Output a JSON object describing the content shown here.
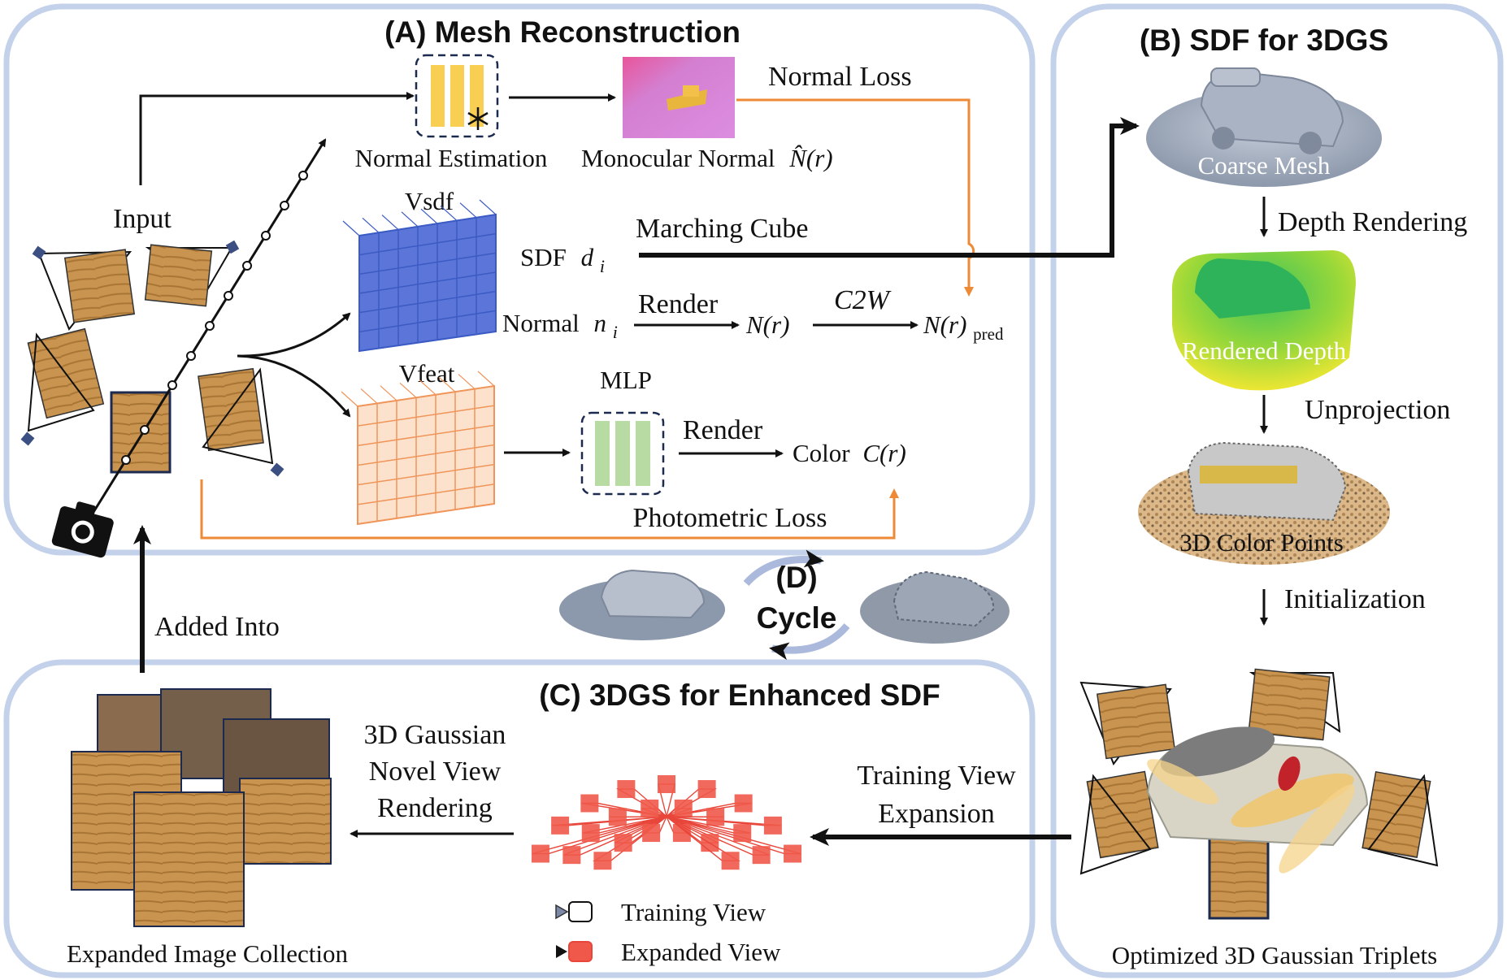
{
  "panels": {
    "a_title": "(A) Mesh Reconstruction",
    "b_title": "(B) SDF for 3DGS",
    "c_title": "(C) 3DGS for Enhanced SDF",
    "d_prefix": "(D)",
    "d_word": "Cycle"
  },
  "mesh": {
    "input": "Input",
    "normal_estimation": "Normal Estimation",
    "monocular_normal": "Monocular Normal",
    "monocular_normal_symbol": "N̂(r)",
    "normal_loss": "Normal Loss",
    "vsdf": "Vsdf",
    "vfeat": "Vfeat",
    "sdf": "SDF",
    "sdf_symbol": "d",
    "sdf_sub": "i",
    "marching_cube": "Marching Cube",
    "normal": "Normal",
    "normal_symbol": "n",
    "normal_sub": "i",
    "render_1": "Render",
    "n_r": "N(r)",
    "c2w": "C2W",
    "n_r_pred": "N(r)",
    "pred_sub": "pred",
    "mlp": "MLP",
    "render_2": "Render",
    "color": "Color",
    "color_symbol": "C(r)",
    "photometric_loss": "Photometric Loss"
  },
  "sdf3dgs": {
    "coarse_mesh": "Coarse Mesh",
    "depth_rendering": "Depth Rendering",
    "rendered_depth": "Rendered Depth",
    "unprojection": "Unprojection",
    "color_points": "3D Color Points",
    "initialization": "Initialization",
    "optimized": "Optimized 3D Gaussian Triplets"
  },
  "enhanced": {
    "added_into": "Added Into",
    "novel_view_1": "3D Gaussian",
    "novel_view_2": "Novel View",
    "novel_view_3": "Rendering",
    "expansion_1": "Training View",
    "expansion_2": "Expansion",
    "expanded_collection": "Expanded Image Collection",
    "legend_training": "Training View",
    "legend_expanded": "Expanded View"
  },
  "colors": {
    "panel_border": "#c3d1ea",
    "loss_arrow": "#ee8a35",
    "vsdf_grid": "#3b5bc4",
    "vfeat_grid": "#f0955a",
    "camera_red": "#e8463a",
    "normal_block": "#f8cf52",
    "mlp_block": "#b7dba2"
  },
  "icons": [
    "camera-icon",
    "snowflake-icon",
    "cycle-arrows-icon"
  ]
}
